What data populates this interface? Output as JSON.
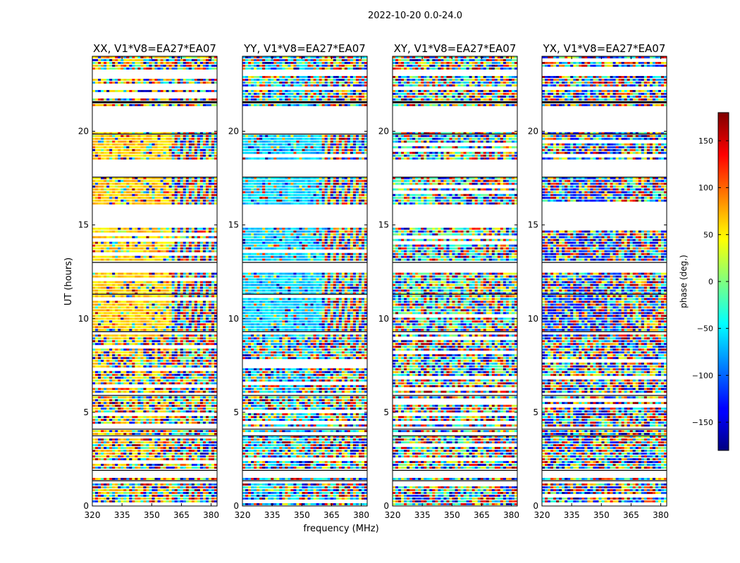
{
  "suptitle": "2022-10-20 0.0-24.0",
  "chart_data": {
    "type": "heatmap",
    "subtype": "waterfall phase plot",
    "xlabel": "frequency (MHz)",
    "ylabel": "UT (hours)",
    "xlim": [
      320,
      383
    ],
    "ylim": [
      0,
      24
    ],
    "xticks": [
      "320",
      "335",
      "350",
      "365",
      "380"
    ],
    "yticks": [
      "0",
      "5",
      "10",
      "15",
      "20"
    ],
    "panels": [
      {
        "title": "XX, V1*V8=EA27*EA07",
        "mean_phase_deg": 60,
        "coherence": 0.78
      },
      {
        "title": "YY, V1*V8=EA27*EA07",
        "mean_phase_deg": -60,
        "coherence": 0.78
      },
      {
        "title": "XY, V1*V8=EA27*EA07",
        "mean_phase_deg": -20,
        "coherence": 0.25
      },
      {
        "title": "YX, V1*V8=EA27*EA07",
        "mean_phase_deg": -120,
        "coherence": 0.25
      }
    ],
    "colorbar": {
      "label": "phase (deg.)",
      "range": [
        -180,
        180
      ],
      "ticks": [
        "150",
        "100",
        "50",
        "0",
        "−50",
        "−100",
        "−150"
      ],
      "tick_values": [
        150,
        100,
        50,
        0,
        -50,
        -100,
        -150
      ],
      "colormap": "jet"
    },
    "data_gaps_ut": [
      [
        23.0,
        23.3
      ],
      [
        22.2,
        22.4
      ],
      [
        21.7,
        21.8
      ],
      [
        21.5,
        21.55
      ],
      [
        19.9,
        21.3
      ],
      [
        18.5,
        17.5
      ],
      [
        16.0,
        14.9
      ],
      [
        13.0,
        12.4
      ],
      [
        11.3,
        11.2
      ],
      [
        9.3,
        9.2
      ],
      [
        6.0,
        5.8
      ],
      [
        4.2,
        4.0
      ],
      [
        3.8,
        3.7
      ],
      [
        2.0,
        1.5
      ],
      [
        1.4,
        1.2
      ]
    ]
  }
}
